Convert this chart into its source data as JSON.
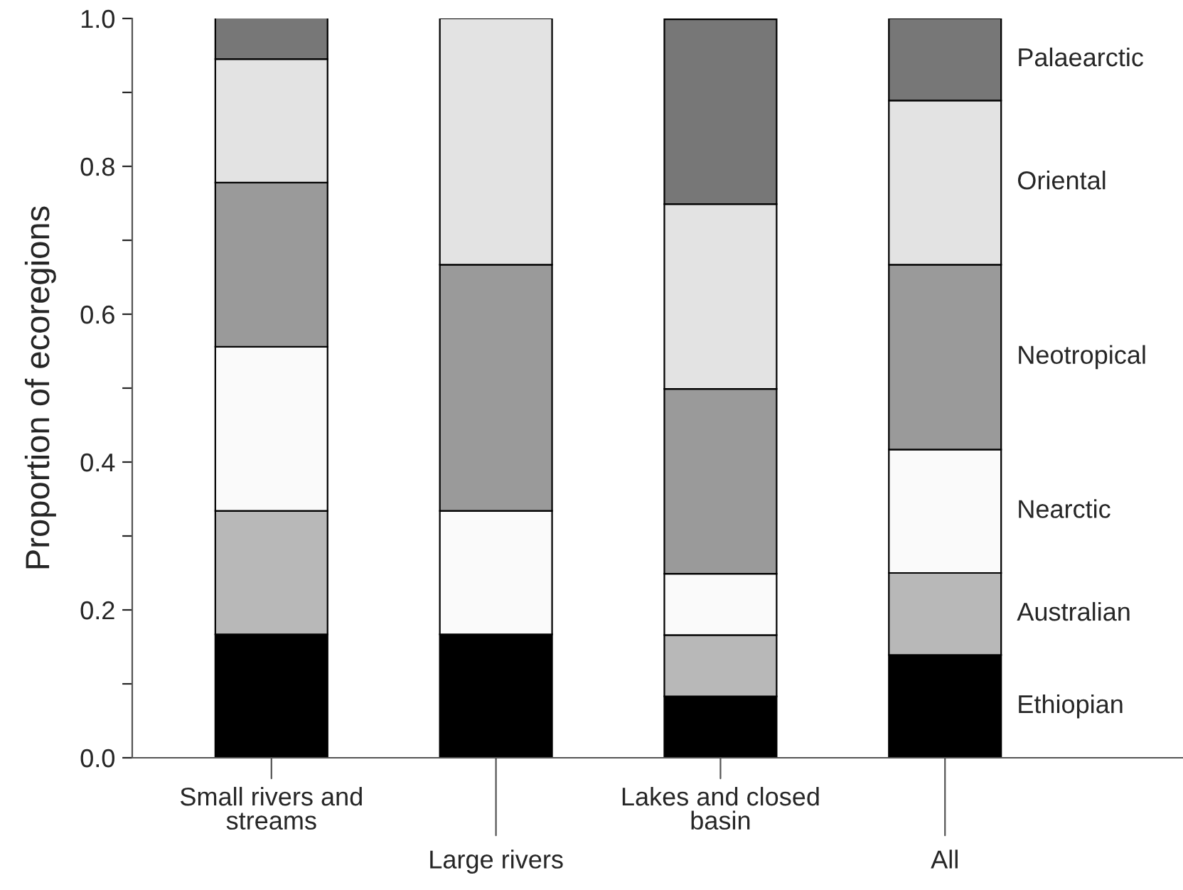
{
  "chart_data": {
    "type": "bar",
    "stacked": true,
    "ylabel": "Proportion of ecoregions",
    "categories": [
      "Small rivers and\nstreams",
      "Large rivers",
      "Lakes and closed\nbasin",
      "All"
    ],
    "series": [
      {
        "name": "Ethiopian",
        "color": "#000000",
        "values": [
          0.167,
          0.167,
          0.083,
          0.139
        ]
      },
      {
        "name": "Australian",
        "color": "#b8b8b8",
        "values": [
          0.167,
          null,
          0.083,
          0.111
        ]
      },
      {
        "name": "Nearctic",
        "color": "#fafafa",
        "values": [
          0.222,
          0.167,
          0.083,
          0.167
        ]
      },
      {
        "name": "Neotropical",
        "color": "#9a9a9a",
        "values": [
          0.222,
          0.333,
          0.25,
          0.25
        ]
      },
      {
        "name": "Oriental",
        "color": "#e3e3e3",
        "values": [
          0.167,
          0.333,
          0.25,
          0.222
        ]
      },
      {
        "name": "Palaearctic",
        "color": "#777777",
        "values": [
          0.056,
          null,
          0.25,
          0.111
        ]
      }
    ],
    "ylim": [
      0,
      1
    ],
    "yticks": [
      {
        "value": 0,
        "label": "0.0"
      },
      {
        "value": 0.1,
        "label": null
      },
      0.2,
      {
        "value": 0.3,
        "label": null
      },
      0.4,
      {
        "value": 0.5,
        "label": null
      },
      0.6,
      {
        "value": 0.7,
        "label": null
      },
      0.8,
      {
        "value": 0.9,
        "label": null
      },
      {
        "value": 1,
        "label": "1.0"
      }
    ],
    "grid": false,
    "legend": false
  }
}
